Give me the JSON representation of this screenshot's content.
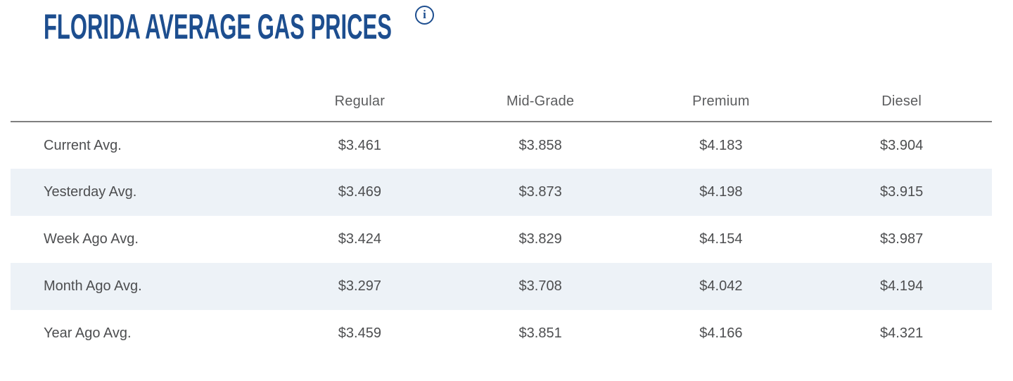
{
  "page": {
    "title": "FLORIDA AVERAGE GAS PRICES",
    "info_icon_glyph": "i"
  },
  "colors": {
    "title_blue": "#1d4e8f",
    "header_text_gray": "#5b5c5e",
    "body_text_gray": "#4d4e50",
    "row_stripe": "#edf2f7",
    "divider_gray": "#7f7f7f"
  },
  "table": {
    "columns": [
      "Regular",
      "Mid-Grade",
      "Premium",
      "Diesel"
    ],
    "rows": [
      {
        "label": "Current Avg.",
        "values": [
          "$3.461",
          "$3.858",
          "$4.183",
          "$3.904"
        ]
      },
      {
        "label": "Yesterday Avg.",
        "values": [
          "$3.469",
          "$3.873",
          "$4.198",
          "$3.915"
        ]
      },
      {
        "label": "Week Ago Avg.",
        "values": [
          "$3.424",
          "$3.829",
          "$4.154",
          "$3.987"
        ]
      },
      {
        "label": "Month Ago Avg.",
        "values": [
          "$3.297",
          "$3.708",
          "$4.042",
          "$4.194"
        ]
      },
      {
        "label": "Year Ago Avg.",
        "values": [
          "$3.459",
          "$3.851",
          "$4.166",
          "$4.321"
        ]
      }
    ]
  }
}
